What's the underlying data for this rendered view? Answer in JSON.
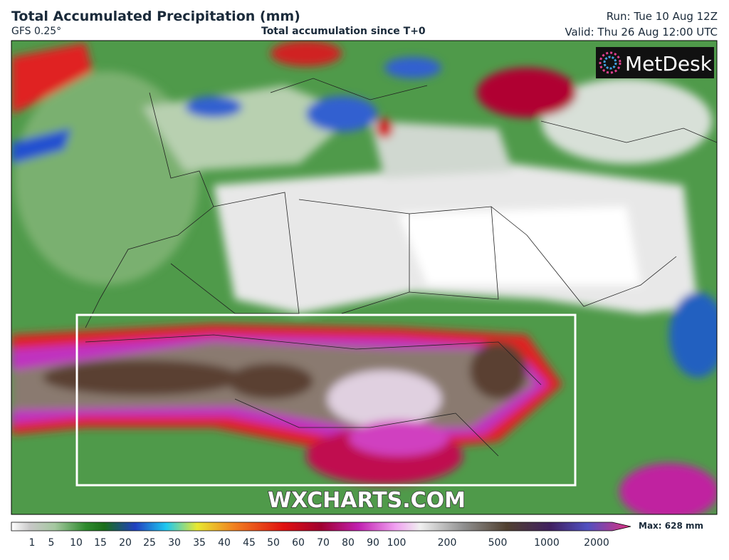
{
  "header": {
    "title": "Total Accumulated Precipitation (mm)",
    "model": "GFS 0.25°",
    "subtitle": "Total accumulation since T+0",
    "run": "Run: Tue 10 Aug 12Z",
    "valid": "Valid: Thu 26 Aug 12:00 UTC"
  },
  "logo": "MetDesk",
  "watermark": "WXCHARTS.COM",
  "legend": {
    "labels": [
      1,
      5,
      10,
      15,
      20,
      25,
      30,
      35,
      40,
      45,
      50,
      60,
      70,
      80,
      90,
      100,
      200,
      500,
      1000,
      2000
    ],
    "max": "Max: 628 mm"
  }
}
